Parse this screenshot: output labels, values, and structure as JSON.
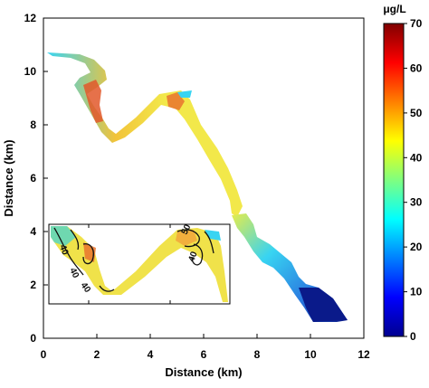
{
  "map": {
    "xlabel": "Distance (km)",
    "ylabel": "Distance (km)",
    "x_ticks": [
      "0",
      "2",
      "4",
      "6",
      "8",
      "10",
      "12"
    ],
    "y_ticks": [
      "0",
      "2",
      "4",
      "6",
      "8",
      "10",
      "12"
    ],
    "xlim": [
      0,
      12
    ],
    "ylim": [
      0,
      12
    ],
    "colorbar": {
      "unit": "μg/L",
      "ticks": [
        "0",
        "10",
        "20",
        "30",
        "40",
        "50",
        "60",
        "70"
      ],
      "range": [
        0,
        70
      ],
      "colormap": "jet"
    },
    "inset": {
      "contour_labels": [
        "40",
        "40",
        "40",
        "50",
        "40"
      ]
    },
    "colors": {
      "high": "#d83a1a",
      "mid_high": "#f2a23a",
      "mid": "#f2e84a",
      "low_mid": "#7fe07a",
      "cyan": "#38d4f2",
      "low": "#1a4cc8",
      "lowest": "#0a1a8a"
    }
  }
}
